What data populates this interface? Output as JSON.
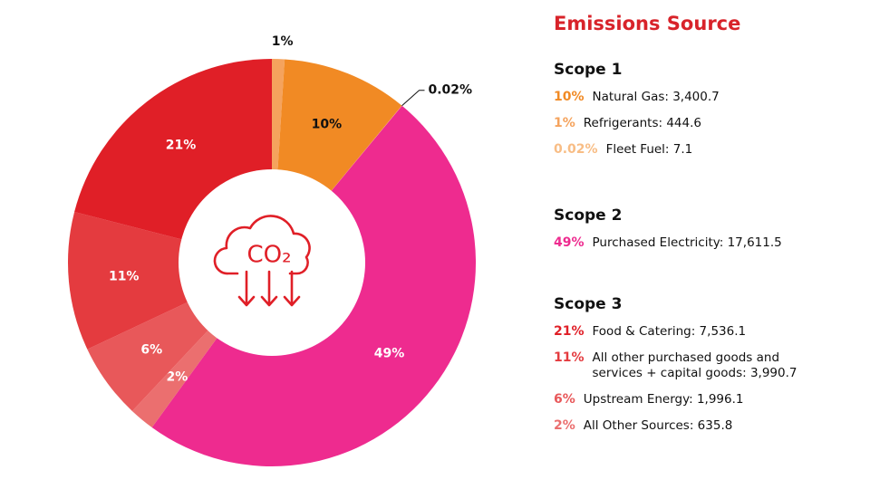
{
  "chart_data": {
    "type": "donut",
    "title": "Emissions Source",
    "center_label": "CO₂",
    "series": [
      {
        "name": "Scope 1",
        "labels": [
          "Natural Gas: 3,400.7",
          "Refrigerants: 444.6",
          "Fleet Fuel: 7.1"
        ],
        "values": [
          10,
          1,
          0.02
        ],
        "value_labels": [
          "10%",
          "1%",
          "0.02%"
        ],
        "colors": [
          "#f18a24",
          "#f5a35d",
          "#f8bd85"
        ]
      },
      {
        "name": "Scope 2",
        "labels": [
          "Purchased Electricity: 17,611.5"
        ],
        "values": [
          49
        ],
        "value_labels": [
          "49%"
        ],
        "colors": [
          "#ee2b8f"
        ]
      },
      {
        "name": "Scope 3",
        "labels": [
          "Food & Catering: 7,536.1",
          "All other purchased goods and services + capital goods: 3,990.7",
          "Upstream Energy: 1,996.1",
          "All Other Sources: 635.8"
        ],
        "values": [
          21,
          11,
          6,
          2
        ],
        "value_labels": [
          "21%",
          "11%",
          "6%",
          "2%"
        ],
        "colors": [
          "#e01f27",
          "#e43b3f",
          "#e8585a",
          "#eb6f6f"
        ]
      }
    ]
  }
}
